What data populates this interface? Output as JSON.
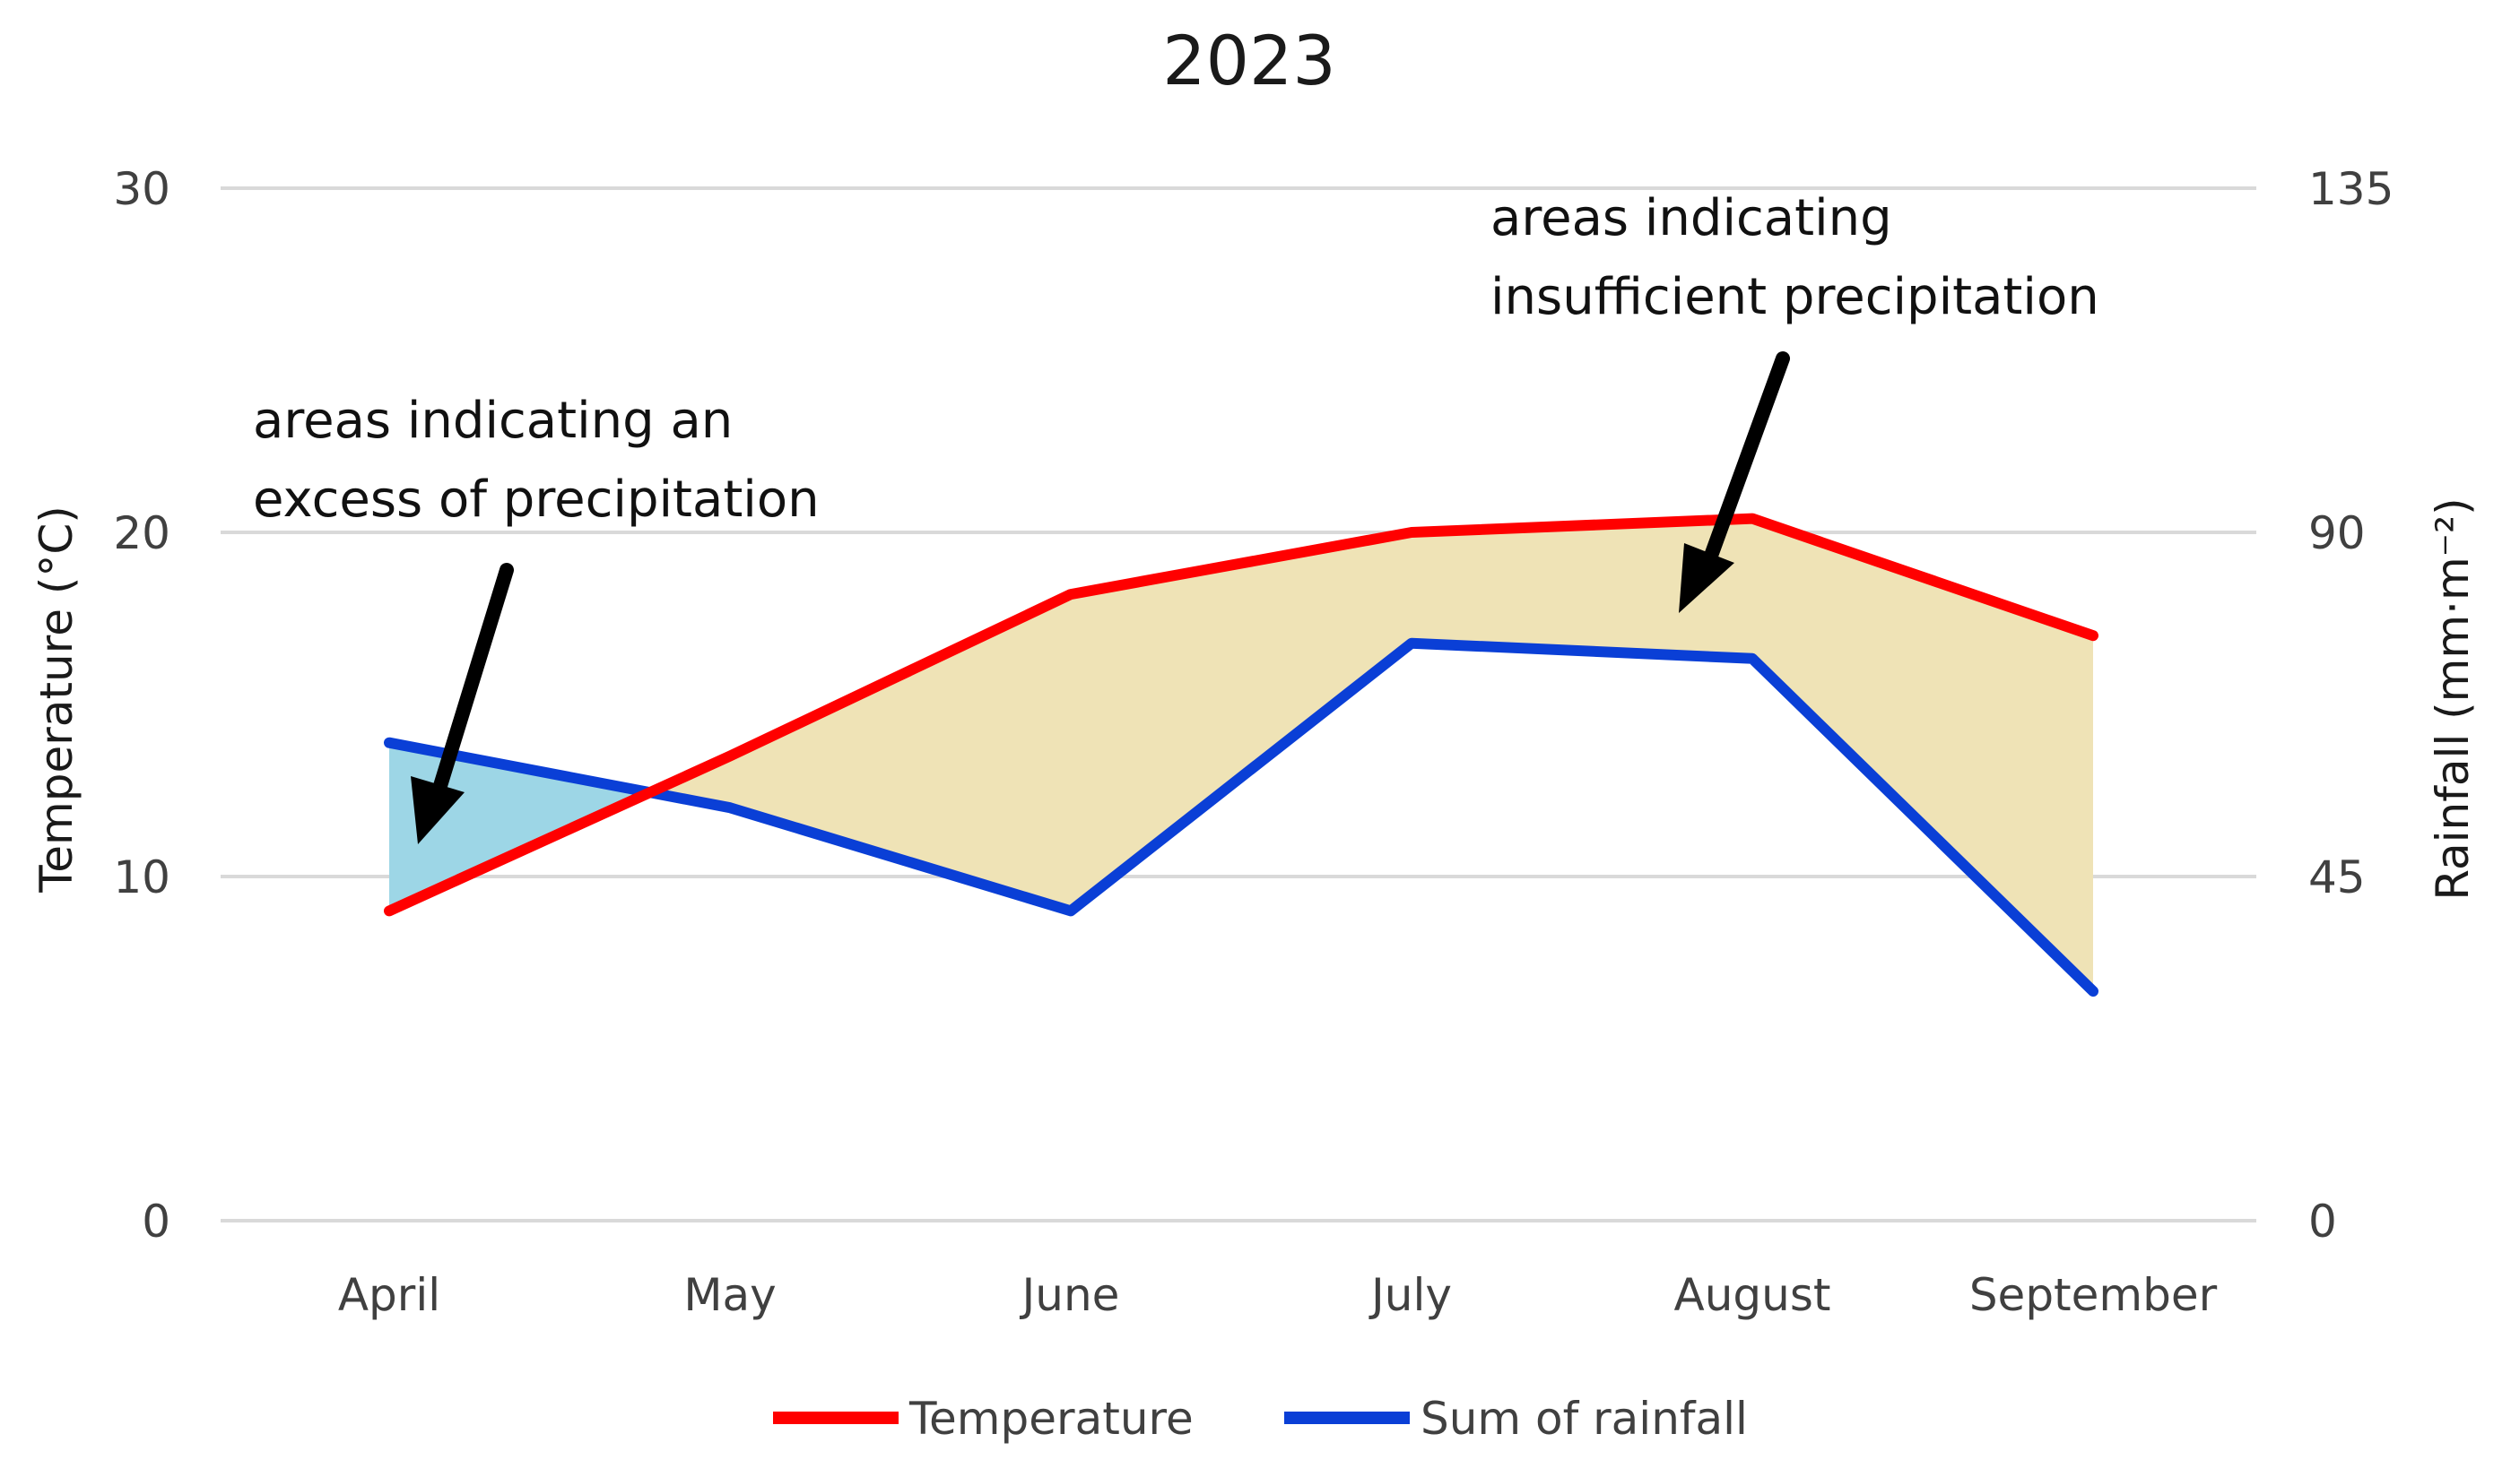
{
  "chart_data": {
    "type": "line",
    "title": "2023",
    "categories": [
      "April",
      "May",
      "June",
      "July",
      "August",
      "September"
    ],
    "y_left": {
      "label": "Temperature (°C)",
      "range": [
        0,
        30
      ],
      "ticks": [
        "0",
        "10",
        "20",
        "30"
      ]
    },
    "y_right": {
      "label": "Rainfall (mm·m⁻²)",
      "range": [
        0,
        135
      ],
      "ticks": [
        "0",
        "45",
        "90",
        "135"
      ]
    },
    "series": [
      {
        "name": "Temperature",
        "axis": "left",
        "color": "#ff0000",
        "values": [
          9.0,
          13.5,
          18.2,
          20.0,
          20.4,
          17.0
        ]
      },
      {
        "name": "Sum of rainfall",
        "axis": "right",
        "color": "#0a3fd6",
        "values": [
          62.5,
          54.0,
          40.5,
          75.5,
          73.5,
          30.0
        ]
      }
    ],
    "fills": {
      "excess": "#9dd6e6",
      "insufficient": "#efe3b6"
    },
    "annotations": [
      {
        "id": "excess",
        "lines": [
          "areas indicating an",
          "excess of precipitation"
        ]
      },
      {
        "id": "insufficient",
        "lines": [
          "areas indicating",
          "insufficient precipitation"
        ]
      }
    ],
    "grid": true,
    "legend_position": "bottom"
  }
}
